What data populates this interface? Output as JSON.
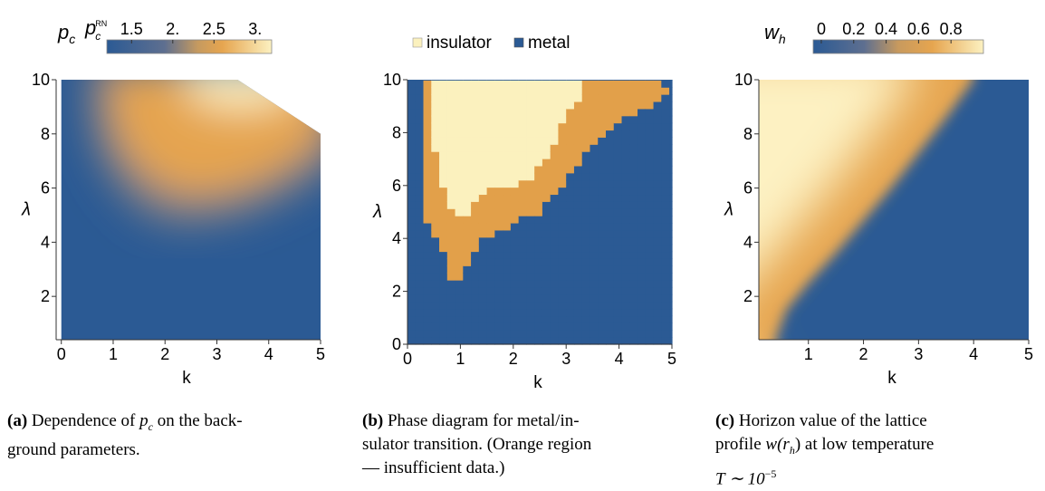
{
  "chart_data": [
    {
      "type": "heatmap",
      "panel_label": "(a)",
      "caption_text": "Dependence of",
      "caption_symbol": "p",
      "caption_symbol_sub": "c",
      "caption_rest": "on the back-",
      "caption_line2": "ground parameters.",
      "colorbar_label": "p",
      "colorbar_label_sub": "c",
      "colorbar_label2": "p",
      "colorbar_label2_sub": "c",
      "colorbar_label2_sup": "RN",
      "colorbar_ticks": [
        "1.5",
        "2.",
        "2.5",
        "3."
      ],
      "colorbar_tick_values": [
        1.5,
        2.0,
        2.5,
        3.0
      ],
      "colorbar_range": [
        1.2,
        3.2
      ],
      "xlabel": "k",
      "ylabel": "λ",
      "xlim": [
        -0.1,
        5.0
      ],
      "ylim": [
        0.4,
        10.0
      ],
      "xticks": [
        "0",
        "1",
        "2",
        "3",
        "4",
        "5"
      ],
      "xtick_values": [
        0,
        1,
        2,
        3,
        4,
        5
      ],
      "yticks": [
        "2",
        "4",
        "6",
        "8",
        "10"
      ],
      "ytick_values": [
        2,
        4,
        6,
        8,
        10
      ],
      "domain": [
        [
          0,
          0.4
        ],
        [
          5,
          0.4
        ],
        [
          5,
          8
        ],
        [
          3.4,
          10
        ],
        [
          0,
          10
        ]
      ],
      "grid": false
    },
    {
      "type": "heatmap",
      "panel_label": "(b)",
      "caption_line1": "Phase diagram for metal/in-",
      "caption_line2": "sulator transition. (Orange region",
      "caption_line3": "— insufficient data.)",
      "legend": [
        {
          "label": "insulator",
          "color": "#fbf1be"
        },
        {
          "label": "metal",
          "color": "#2b5a94"
        }
      ],
      "legend_position": "top",
      "colors": {
        "insulator": "#fbf1be",
        "insufficient": "#e2a04a",
        "metal": "#2b5a94"
      },
      "xlabel": "k",
      "ylabel": "λ",
      "xlim": [
        0,
        5
      ],
      "ylim": [
        0,
        10
      ],
      "xticks": [
        "0",
        "1",
        "2",
        "3",
        "4",
        "5"
      ],
      "xtick_values": [
        0,
        1,
        2,
        3,
        4,
        5
      ],
      "yticks": [
        "0",
        "2",
        "4",
        "6",
        "8",
        "10"
      ],
      "ytick_values": [
        0,
        2,
        4,
        6,
        8,
        10
      ],
      "cell_size": [
        0.15,
        0.27
      ],
      "insulator_region": [
        [
          0.45,
          10
        ],
        [
          3.25,
          10
        ],
        [
          3.25,
          9.4
        ],
        [
          2.9,
          8.2
        ],
        [
          2.7,
          7.3
        ],
        [
          2.4,
          6.4
        ],
        [
          2.2,
          6.1
        ],
        [
          1.5,
          5.9
        ],
        [
          1.05,
          4.7
        ],
        [
          0.8,
          5.2
        ],
        [
          0.6,
          6.2
        ],
        [
          0.5,
          7.5
        ],
        [
          0.45,
          9.0
        ]
      ],
      "orange_region": [
        [
          0.3,
          10
        ],
        [
          4.7,
          10
        ],
        [
          4.9,
          9.6
        ],
        [
          4.6,
          9.0
        ],
        [
          4.0,
          8.4
        ],
        [
          3.4,
          7.4
        ],
        [
          3.0,
          6.2
        ],
        [
          2.5,
          5.0
        ],
        [
          2.0,
          4.6
        ],
        [
          1.4,
          3.9
        ],
        [
          1.2,
          3.2
        ],
        [
          0.9,
          2.3
        ],
        [
          0.7,
          2.3
        ],
        [
          0.8,
          3.2
        ],
        [
          0.6,
          3.9
        ],
        [
          0.4,
          4.4
        ],
        [
          0.35,
          5.0
        ],
        [
          0.3,
          6.0
        ]
      ],
      "grid": false
    },
    {
      "type": "heatmap",
      "panel_label": "(c)",
      "caption_line1": "Horizon value of the lattice",
      "caption_line2_pre": "profile",
      "caption_line2_math": "w(r",
      "caption_line2_math_sub": "h",
      "caption_line2_post": ") at low temperature",
      "caption_line3": "T ∼ 10",
      "caption_line3_sup": "−5",
      "colorbar_label": "w",
      "colorbar_label_sub": "h",
      "colorbar_ticks": [
        "0",
        "0.2",
        "0.4",
        "0.6",
        "0.8"
      ],
      "colorbar_tick_values": [
        0,
        0.2,
        0.4,
        0.6,
        0.8
      ],
      "colorbar_range": [
        -0.05,
        1.0
      ],
      "xlabel": "k",
      "ylabel": "λ",
      "xlim": [
        0.1,
        5.0
      ],
      "ylim": [
        0.4,
        10.0
      ],
      "xticks": [
        "1",
        "2",
        "3",
        "4",
        "5"
      ],
      "xtick_values": [
        1,
        2,
        3,
        4,
        5
      ],
      "yticks": [
        "2",
        "4",
        "6",
        "8",
        "10"
      ],
      "ytick_values": [
        2,
        4,
        6,
        8,
        10
      ],
      "boundary": [
        [
          0.4,
          0.4
        ],
        [
          0.6,
          1.5
        ],
        [
          1.0,
          2.5
        ],
        [
          1.5,
          3.6
        ],
        [
          2.0,
          4.8
        ],
        [
          2.5,
          6.0
        ],
        [
          3.0,
          7.3
        ],
        [
          3.5,
          8.6
        ],
        [
          4.0,
          10.0
        ]
      ],
      "grid": false
    }
  ]
}
